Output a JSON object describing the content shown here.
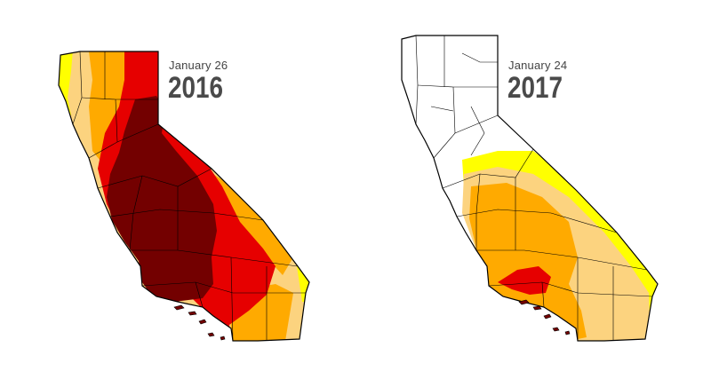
{
  "maps": [
    {
      "date": "January 26",
      "year": "2016"
    },
    {
      "date": "January 24",
      "year": "2017"
    }
  ],
  "colors": {
    "abnormally_dry": "#ffff00",
    "moderate": "#fcd37f",
    "severe": "#ffaa00",
    "extreme": "#e60000",
    "exceptional": "#730000",
    "none": "#ffffff",
    "outline": "#000000"
  }
}
